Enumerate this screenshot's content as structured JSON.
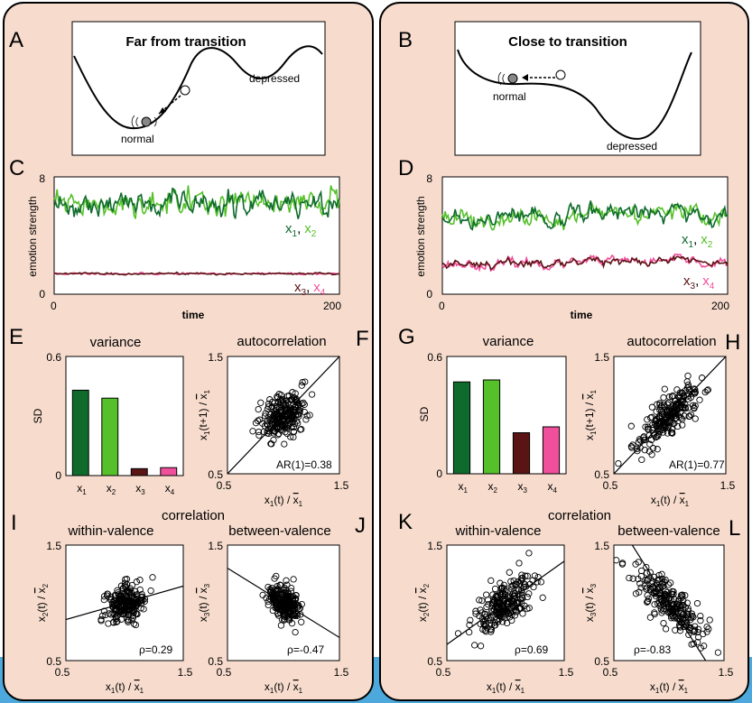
{
  "colors": {
    "panel_bg": "#f7dccd",
    "x1": "#0e6b2c",
    "x2": "#55c02a",
    "x3": "#5a1414",
    "x4": "#f0509b",
    "strip": "#4da8dc"
  },
  "left": {
    "A": {
      "letter": "A",
      "title": "Far from transition",
      "label_depressed": "depressed",
      "label_normal": "normal"
    },
    "C": {
      "letter": "C",
      "ylabel": "emotion strength",
      "xlabel": "time",
      "y_top": "8",
      "y_bottom": "0",
      "x_left": "0",
      "x_right": "200",
      "legend_a": "x",
      "legend_a_sub": "1",
      "legend_b": "x",
      "legend_b_sub": "2",
      "legend_c": "x",
      "legend_c_sub": "3",
      "legend_d": "x",
      "legend_d_sub": "4",
      "comma": ","
    },
    "E": {
      "letter": "E",
      "title": "variance",
      "ylabel": "SD",
      "y_top": "0.6",
      "y_bottom": "0"
    },
    "F": {
      "letter": "F",
      "title": "autocorrelation",
      "stat": "AR(1)=0.38",
      "y_top": "1.5",
      "y_bottom": "0.5",
      "x_left": "0.5",
      "x_right": "1.5"
    },
    "I": {
      "letter": "I",
      "title": "within-valence",
      "stat": "ρ=0.29",
      "y_top": "1.5",
      "y_bottom": "0.5",
      "x_left": "0.5",
      "x_right": "1.5"
    },
    "J": {
      "letter": "J",
      "title": "between-valence",
      "stat": "ρ=-0.47",
      "y_top": "1.5",
      "y_bottom": "0.5",
      "x_left": "0.5",
      "x_right": "1.5"
    },
    "corr_title": "correlation"
  },
  "right": {
    "B": {
      "letter": "B",
      "title": "Close to transition",
      "label_depressed": "depressed",
      "label_normal": "normal"
    },
    "D": {
      "letter": "D",
      "ylabel": "emotion strength",
      "xlabel": "time",
      "y_top": "8",
      "y_bottom": "0",
      "x_left": "0",
      "x_right": "200",
      "legend_a": "x",
      "legend_a_sub": "1",
      "legend_b": "x",
      "legend_b_sub": "2",
      "legend_c": "x",
      "legend_c_sub": "3",
      "legend_d": "x",
      "legend_d_sub": "4",
      "comma": ","
    },
    "G": {
      "letter": "G",
      "title": "variance",
      "ylabel": "SD",
      "y_top": "0.6",
      "y_bottom": "0"
    },
    "H": {
      "letter": "H",
      "title": "autocorrelation",
      "stat": "AR(1)=0.77",
      "y_top": "1.5",
      "y_bottom": "0.5",
      "x_left": "0.5",
      "x_right": "1.5"
    },
    "K": {
      "letter": "K",
      "title": "within-valence",
      "stat": "ρ=0.69",
      "y_top": "1.5",
      "y_bottom": "0.5",
      "x_left": "0.5",
      "x_right": "1.5"
    },
    "L": {
      "letter": "L",
      "title": "between-valence",
      "stat": "ρ=-0.83",
      "y_top": "1.5",
      "y_bottom": "0.5",
      "x_left": "0.5",
      "x_right": "1.5"
    },
    "corr_title": "correlation"
  },
  "axis_text": {
    "x": "x",
    "sub1": "1",
    "sub2": "2",
    "sub3": "3",
    "sub4": "4",
    "t": "(t)",
    "tp1": "(t+1)",
    "slash": " / "
  },
  "chart_data": [
    {
      "panel": "C",
      "type": "line",
      "x_range": [
        0,
        200
      ],
      "ylim": [
        0,
        8
      ],
      "series": [
        {
          "name": "x1",
          "mean": 6.2,
          "noise": 0.35,
          "drift": 0.0
        },
        {
          "name": "x2",
          "mean": 6.2,
          "noise": 0.35,
          "drift": 0.0
        },
        {
          "name": "x3",
          "mean": 1.4,
          "noise": 0.03,
          "drift": 0.0
        },
        {
          "name": "x4",
          "mean": 1.4,
          "noise": 0.03,
          "drift": 0.0
        }
      ]
    },
    {
      "panel": "D",
      "type": "line",
      "x_range": [
        0,
        200
      ],
      "ylim": [
        0,
        8
      ],
      "series": [
        {
          "name": "x1",
          "mean": 5.3,
          "noise": 0.25,
          "drift": 0.5
        },
        {
          "name": "x2",
          "mean": 5.2,
          "noise": 0.25,
          "drift": 0.5
        },
        {
          "name": "x3",
          "mean": 2.1,
          "noise": 0.1,
          "drift": 0.25
        },
        {
          "name": "x4",
          "mean": 2.1,
          "noise": 0.1,
          "drift": 0.25
        }
      ]
    },
    {
      "panel": "E",
      "type": "bar",
      "categories": [
        "x1",
        "x2",
        "x3",
        "x4"
      ],
      "values": [
        0.43,
        0.39,
        0.035,
        0.04
      ],
      "ylim": [
        0,
        0.6
      ]
    },
    {
      "panel": "G",
      "type": "bar",
      "categories": [
        "x1",
        "x2",
        "x3",
        "x4"
      ],
      "values": [
        0.47,
        0.48,
        0.21,
        0.24
      ],
      "ylim": [
        0,
        0.6
      ]
    },
    {
      "panel": "F",
      "type": "scatter",
      "xlim": [
        0.5,
        1.5
      ],
      "ylim": [
        0.5,
        1.5
      ],
      "corr": 0.38,
      "center": [
        1.0,
        1.0
      ],
      "sd": 0.1,
      "fit": "identity"
    },
    {
      "panel": "H",
      "type": "scatter",
      "xlim": [
        0.5,
        1.5
      ],
      "ylim": [
        0.5,
        1.5
      ],
      "corr": 0.77,
      "center": [
        1.0,
        1.0
      ],
      "sd": 0.14,
      "fit": "identity"
    },
    {
      "panel": "I",
      "type": "scatter",
      "xlim": [
        0.5,
        1.5
      ],
      "ylim": [
        0.5,
        1.5
      ],
      "corr": 0.29,
      "center": [
        1.0,
        1.0
      ],
      "sd": 0.08,
      "fit_slope": 0.29
    },
    {
      "panel": "J",
      "type": "scatter",
      "xlim": [
        0.5,
        1.5
      ],
      "ylim": [
        0.5,
        1.5
      ],
      "corr": -0.47,
      "center": [
        1.0,
        1.0
      ],
      "sd": 0.08,
      "fit_slope": -0.6
    },
    {
      "panel": "K",
      "type": "scatter",
      "xlim": [
        0.5,
        1.5
      ],
      "ylim": [
        0.5,
        1.5
      ],
      "corr": 0.69,
      "center": [
        1.0,
        1.0
      ],
      "sd": 0.13,
      "fit_slope": 0.72
    },
    {
      "panel": "L",
      "type": "scatter",
      "xlim": [
        0.5,
        1.5
      ],
      "ylim": [
        0.5,
        1.5
      ],
      "corr": -0.83,
      "center": [
        1.0,
        1.0
      ],
      "sd": 0.15,
      "fit_slope": -1.5
    }
  ]
}
